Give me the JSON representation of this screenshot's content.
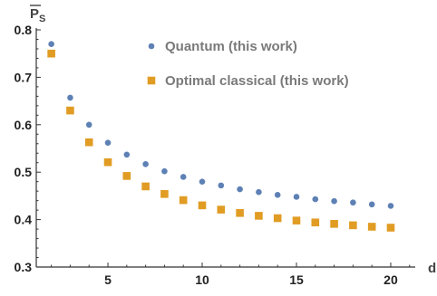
{
  "chart_data": {
    "type": "scatter",
    "xlabel": "d",
    "ylabel": "P",
    "ylabel_sub": "S",
    "xlim": [
      1.2,
      21.3
    ],
    "ylim": [
      0.3,
      0.8
    ],
    "x_ticks": [
      5,
      10,
      15,
      20
    ],
    "y_ticks": [
      0.3,
      0.4,
      0.5,
      0.6,
      0.7,
      0.8
    ],
    "x_tick_labels": [
      "5",
      "10",
      "15",
      "20"
    ],
    "y_tick_labels": [
      "0.3",
      "0.4",
      "0.5",
      "0.6",
      "0.7",
      "0.8"
    ],
    "grid": false,
    "legend_position": "top-right",
    "series": [
      {
        "name": "Quantum (this work)",
        "marker": "circle",
        "color": "#5e81b5",
        "x": [
          2,
          3,
          4,
          5,
          6,
          7,
          8,
          9,
          10,
          11,
          12,
          13,
          14,
          15,
          16,
          17,
          18,
          19,
          20
        ],
        "y": [
          0.77,
          0.657,
          0.6,
          0.562,
          0.537,
          0.517,
          0.502,
          0.49,
          0.48,
          0.472,
          0.464,
          0.458,
          0.452,
          0.448,
          0.443,
          0.439,
          0.436,
          0.432,
          0.429
        ]
      },
      {
        "name": "Optimal classical (this work)",
        "marker": "square",
        "color": "#e19c24",
        "x": [
          2,
          3,
          4,
          5,
          6,
          7,
          8,
          9,
          10,
          11,
          12,
          13,
          14,
          15,
          16,
          17,
          18,
          19,
          20
        ],
        "y": [
          0.75,
          0.63,
          0.563,
          0.521,
          0.492,
          0.47,
          0.454,
          0.441,
          0.43,
          0.421,
          0.414,
          0.408,
          0.403,
          0.398,
          0.394,
          0.391,
          0.388,
          0.385,
          0.383
        ]
      }
    ]
  }
}
